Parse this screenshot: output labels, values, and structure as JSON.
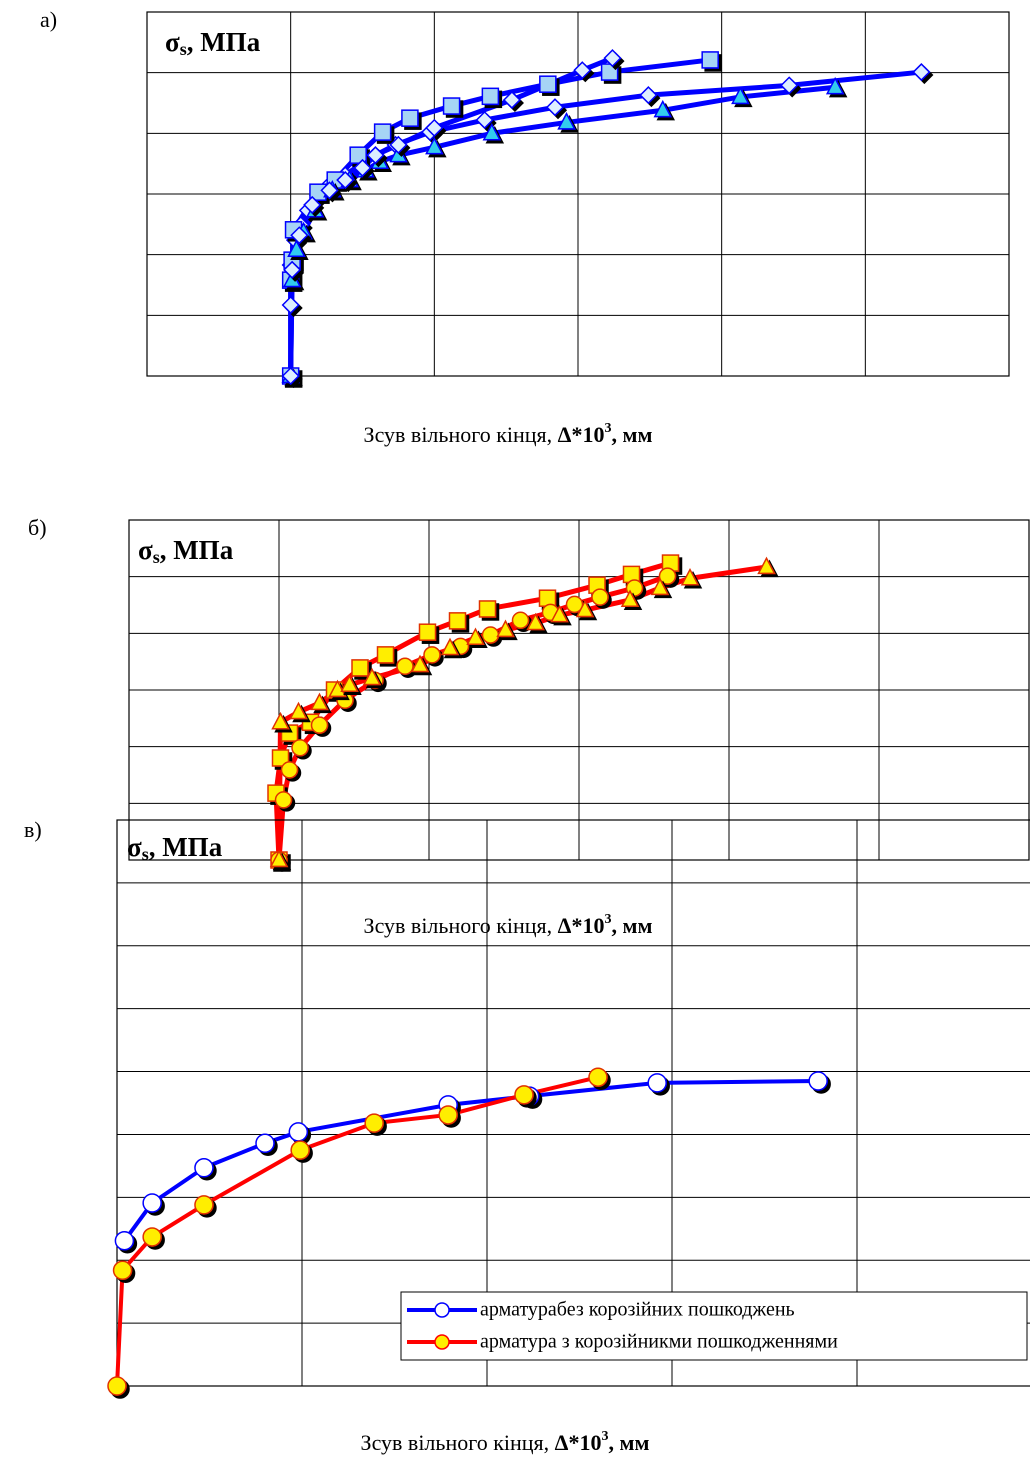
{
  "chart_data": [
    {
      "type": "line",
      "panel": "а)",
      "ylabel": {
        "main": "σ",
        "sub": "s",
        "rest": ", МПа"
      },
      "xlabel": [
        "Зсув вільного кінця, ",
        "Δ*10",
        "3",
        ", мм"
      ],
      "xlim": [
        0,
        6
      ],
      "ylim": [
        0,
        6
      ],
      "xticks": [
        0,
        1,
        2,
        3,
        4,
        5,
        6
      ],
      "yticks": [
        0,
        1,
        2,
        3,
        4,
        5,
        6
      ],
      "grid": true,
      "series": [
        {
          "color": "#0000ff",
          "marker": "diamond",
          "marker_color": "#ddeeff",
          "x": [
            1.0,
            1.0,
            1.0,
            1.03,
            1.07,
            1.12,
            1.19,
            1.27,
            1.38,
            1.48,
            1.59,
            1.73,
            1.97,
            2.35,
            2.84,
            3.49,
            4.47,
            5.39
          ],
          "values": [
            0,
            1.17,
            1.83,
            2.24,
            2.49,
            2.73,
            2.98,
            3.15,
            3.31,
            3.48,
            3.64,
            3.81,
            4.02,
            4.22,
            4.43,
            4.63,
            4.79,
            5.01
          ]
        },
        {
          "color": "#0000ff",
          "marker": "square",
          "marker_color": "#a6d4f5",
          "x": [
            1.0,
            1.0,
            1.01,
            1.02,
            1.19,
            1.31,
            1.47,
            1.64,
            1.83,
            2.12,
            2.39,
            2.79,
            3.22,
            3.92
          ],
          "values": [
            0,
            1.58,
            1.91,
            2.41,
            3.03,
            3.23,
            3.64,
            4.02,
            4.25,
            4.45,
            4.61,
            4.81,
            5.01,
            5.21
          ]
        },
        {
          "color": "#0000ff",
          "marker": "triangle",
          "marker_color": "#33ccee",
          "x": [
            1.0,
            1.01,
            1.04,
            1.09,
            1.17,
            1.29,
            1.41,
            1.52,
            1.62,
            1.75,
            2.0,
            2.4,
            2.92,
            3.59,
            4.13,
            4.79
          ],
          "values": [
            0,
            1.58,
            2.08,
            2.37,
            2.73,
            3.06,
            3.23,
            3.39,
            3.53,
            3.64,
            3.77,
            4.0,
            4.18,
            4.38,
            4.6,
            4.76
          ]
        },
        {
          "color": "#0000ff",
          "marker": "diamond",
          "marker_color": "#ddeeff",
          "x": [
            1.0,
            1.01,
            1.06,
            1.15,
            1.27,
            1.38,
            1.5,
            1.59,
            1.75,
            2.0,
            2.54,
            3.03,
            3.24
          ],
          "values": [
            0,
            1.75,
            2.32,
            2.82,
            3.06,
            3.23,
            3.43,
            3.64,
            3.81,
            4.09,
            4.55,
            5.04,
            5.24
          ]
        }
      ]
    },
    {
      "type": "line",
      "panel": "б)",
      "ylabel": {
        "main": "σ",
        "sub": "s",
        "rest": ", МПа"
      },
      "xlabel": [
        "Зсув вільного кінця, ",
        "Δ*10",
        "3",
        ", мм"
      ],
      "xlim": [
        0,
        6
      ],
      "ylim": [
        0,
        6
      ],
      "xticks": [
        0,
        1,
        2,
        3,
        4,
        5,
        6
      ],
      "yticks": [
        0,
        1,
        2,
        3,
        4,
        5,
        6
      ],
      "grid": true,
      "series": [
        {
          "color": "#ff0000",
          "marker": "square",
          "marker_color": "#ffee00",
          "x": [
            1.0,
            0.98,
            1.01,
            1.07,
            1.21,
            1.37,
            1.54,
            1.71,
            1.99,
            2.19,
            2.39,
            2.79,
            3.12,
            3.35,
            3.61
          ],
          "values": [
            0,
            1.18,
            1.8,
            2.24,
            2.43,
            3.0,
            3.39,
            3.62,
            4.02,
            4.22,
            4.43,
            4.62,
            4.85,
            5.04,
            5.24
          ]
        },
        {
          "color": "#ff0000",
          "marker": "circle",
          "marker_color": "#ffee00",
          "x": [
            1.0,
            1.03,
            1.07,
            1.14,
            1.27,
            1.44,
            1.64,
            1.84,
            2.02,
            2.21,
            2.41,
            2.61,
            2.81,
            2.97,
            3.14,
            3.37,
            3.59
          ],
          "values": [
            0,
            1.06,
            1.59,
            1.98,
            2.38,
            2.82,
            3.17,
            3.42,
            3.62,
            3.77,
            3.97,
            4.23,
            4.37,
            4.51,
            4.64,
            4.8,
            5.01
          ]
        },
        {
          "color": "#ff0000",
          "marker": "triangle",
          "marker_color": "#ffee00",
          "x": [
            1.0,
            1.01,
            1.13,
            1.27,
            1.39,
            1.47,
            1.62,
            1.94,
            2.14,
            2.31,
            2.51,
            2.71,
            2.87,
            3.04,
            3.34,
            3.54,
            3.74,
            4.25
          ],
          "values": [
            0,
            2.43,
            2.61,
            2.77,
            3.0,
            3.09,
            3.21,
            3.44,
            3.74,
            3.92,
            4.06,
            4.18,
            4.32,
            4.41,
            4.59,
            4.8,
            4.97,
            5.17
          ]
        }
      ]
    },
    {
      "type": "line",
      "panel": "в)",
      "ylabel": {
        "main": "σ",
        "sub": "s",
        "rest": ", МПа"
      },
      "xlabel": [
        "Зсув вільного кінця, ",
        "Δ*10",
        "3",
        ", мм"
      ],
      "xlim": [
        0,
        5
      ],
      "ylim": [
        0,
        9
      ],
      "xticks": [
        0,
        1,
        2,
        3,
        4,
        5
      ],
      "yticks": [
        0,
        1,
        2,
        3,
        4,
        5,
        6,
        7,
        8,
        9
      ],
      "grid": true,
      "legend": "lower right",
      "series": [
        {
          "name": "арматурабез корозійних пошкоджень",
          "color": "#0000ff",
          "marker": "circle",
          "marker_color": "#ffffff",
          "x": [
            0.04,
            0.19,
            0.47,
            0.8,
            0.98,
            1.79,
            2.23,
            2.92,
            3.79
          ],
          "values": [
            2.31,
            2.91,
            3.47,
            3.86,
            4.04,
            4.47,
            4.61,
            4.82,
            4.85
          ]
        },
        {
          "name": "арматура з корозійникми пошкодженнями",
          "color": "#ff0000",
          "marker": "circle",
          "marker_color": "#ffee00",
          "x": [
            0,
            0.03,
            0.19,
            0.47,
            0.99,
            1.39,
            1.79,
            2.2,
            2.6
          ],
          "values": [
            0,
            1.84,
            2.37,
            2.88,
            3.75,
            4.18,
            4.31,
            4.63,
            4.91
          ]
        }
      ]
    }
  ]
}
